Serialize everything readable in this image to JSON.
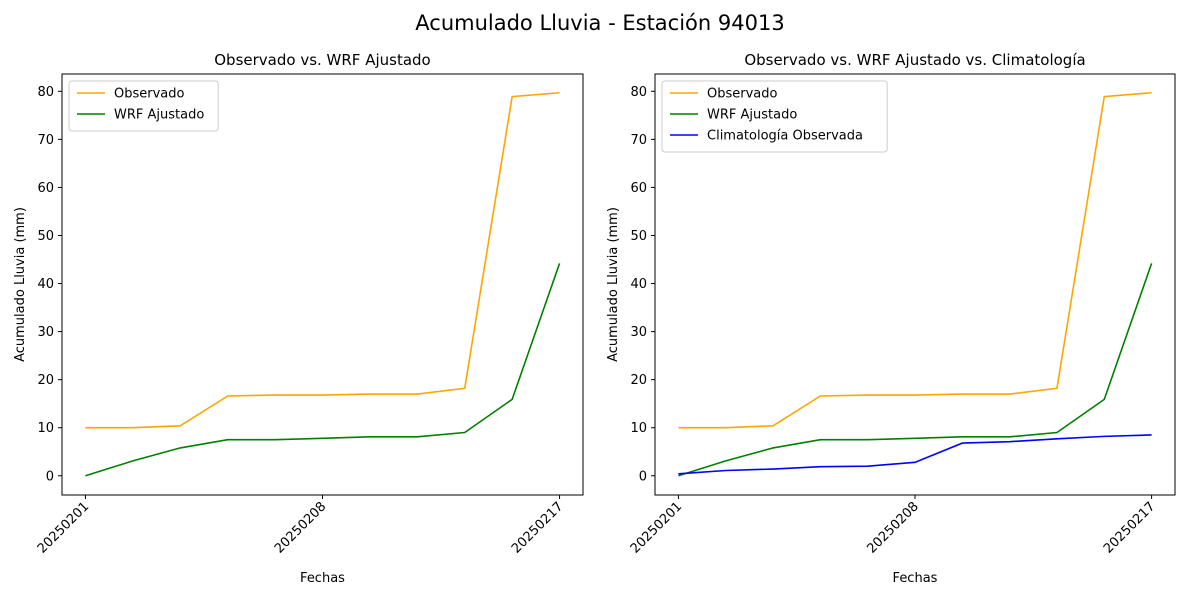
{
  "title": "Acumulado Lluvia - Estación 94013",
  "chart_data": [
    {
      "type": "line",
      "title": "Observado vs. WRF Ajustado",
      "xlabel": "Fechas",
      "ylabel": "Acumulado Lluvia (mm)",
      "categories": [
        "20250201",
        null,
        null,
        null,
        null,
        "20250208",
        null,
        null,
        null,
        null,
        "20250217"
      ],
      "series": [
        {
          "name": "Observado",
          "color": "orange",
          "values": [
            10,
            10,
            10.4,
            16.6,
            16.8,
            16.8,
            17,
            17,
            18.2,
            78.9,
            79.7
          ]
        },
        {
          "name": "WRF Ajustado",
          "color": "green",
          "values": [
            0,
            3.1,
            5.8,
            7.5,
            7.5,
            7.8,
            8.1,
            8.1,
            9,
            15.9,
            44.2
          ]
        }
      ],
      "ylim": [
        -4,
        83.6
      ],
      "yticks": [
        0,
        10,
        20,
        30,
        40,
        50,
        60,
        70,
        80
      ],
      "legend": "upper left",
      "grid": false
    },
    {
      "type": "line",
      "title": "Observado vs. WRF Ajustado vs. Climatología",
      "xlabel": "Fechas",
      "ylabel": "Acumulado Lluvia (mm)",
      "categories": [
        "20250201",
        null,
        null,
        null,
        null,
        "20250208",
        null,
        null,
        null,
        null,
        "20250217"
      ],
      "series": [
        {
          "name": "Observado",
          "color": "orange",
          "values": [
            10,
            10,
            10.4,
            16.6,
            16.8,
            16.8,
            17,
            17,
            18.2,
            78.9,
            79.7
          ]
        },
        {
          "name": "WRF Ajustado",
          "color": "green",
          "values": [
            0,
            3.1,
            5.8,
            7.5,
            7.5,
            7.8,
            8.1,
            8.1,
            9,
            15.9,
            44.2
          ]
        },
        {
          "name": "Climatología Observada",
          "color": "blue",
          "values": [
            0.4,
            1.1,
            1.4,
            1.9,
            2.0,
            2.8,
            6.8,
            7.1,
            7.7,
            8.2,
            8.5
          ]
        }
      ],
      "ylim": [
        -4,
        83.6
      ],
      "yticks": [
        0,
        10,
        20,
        30,
        40,
        50,
        60,
        70,
        80
      ],
      "legend": "upper left",
      "grid": false
    }
  ]
}
